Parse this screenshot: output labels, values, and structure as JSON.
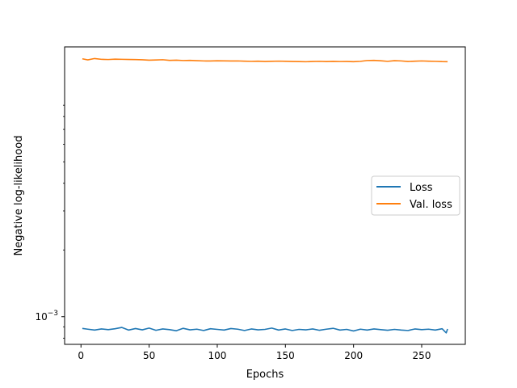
{
  "chart_data": {
    "type": "line",
    "title": "",
    "xlabel": "Epochs",
    "ylabel": "Negative log-likelihood",
    "xlim": [
      -12,
      282
    ],
    "ylim": [
      0.00075,
      0.0165
    ],
    "y_scale": "log",
    "x_ticks": [
      0,
      50,
      100,
      150,
      200,
      250
    ],
    "x_tick_labels": [
      "0",
      "50",
      "100",
      "150",
      "200",
      "250"
    ],
    "y_ticks": [
      0.001
    ],
    "y_tick_labels": [
      {
        "base": "10",
        "exp": "−3"
      }
    ],
    "grid": false,
    "legend_position": "center-right",
    "series": [
      {
        "name": "Loss",
        "color": "#1f77b4",
        "x": [
          1,
          5,
          10,
          15,
          20,
          25,
          30,
          35,
          40,
          45,
          50,
          55,
          60,
          65,
          70,
          75,
          80,
          85,
          90,
          95,
          100,
          105,
          110,
          115,
          120,
          125,
          130,
          135,
          140,
          145,
          150,
          155,
          160,
          165,
          170,
          175,
          180,
          185,
          190,
          195,
          200,
          205,
          210,
          215,
          220,
          225,
          230,
          235,
          240,
          245,
          250,
          255,
          260,
          265,
          268,
          269
        ],
        "values": [
          0.000885,
          0.000878,
          0.00087,
          0.00088,
          0.000874,
          0.000882,
          0.000894,
          0.00087,
          0.000884,
          0.000872,
          0.000888,
          0.000868,
          0.00088,
          0.000874,
          0.000864,
          0.000886,
          0.000872,
          0.000878,
          0.000866,
          0.000882,
          0.000876,
          0.00087,
          0.000884,
          0.000878,
          0.000866,
          0.00088,
          0.000872,
          0.000876,
          0.000888,
          0.00087,
          0.00088,
          0.000866,
          0.000876,
          0.000872,
          0.00088,
          0.000868,
          0.000878,
          0.000886,
          0.00087,
          0.000876,
          0.000862,
          0.000878,
          0.00087,
          0.00088,
          0.000874,
          0.000868,
          0.000876,
          0.00087,
          0.000866,
          0.00088,
          0.000874,
          0.000878,
          0.00087,
          0.000882,
          0.000845,
          0.00088
        ]
      },
      {
        "name": "Val. loss",
        "color": "#ff7f0e",
        "x": [
          1,
          5,
          10,
          15,
          20,
          25,
          30,
          35,
          40,
          45,
          50,
          55,
          60,
          65,
          70,
          75,
          80,
          85,
          90,
          95,
          100,
          105,
          110,
          115,
          120,
          125,
          130,
          135,
          140,
          145,
          150,
          155,
          160,
          165,
          170,
          175,
          180,
          185,
          190,
          195,
          200,
          205,
          210,
          215,
          220,
          225,
          230,
          235,
          240,
          245,
          250,
          255,
          260,
          265,
          269
        ],
        "values": [
          0.01458,
          0.01442,
          0.01462,
          0.0145,
          0.01447,
          0.01452,
          0.0145,
          0.01448,
          0.01446,
          0.01443,
          0.01437,
          0.0144,
          0.01444,
          0.01434,
          0.01437,
          0.01432,
          0.01434,
          0.0143,
          0.01426,
          0.01425,
          0.01428,
          0.01427,
          0.01425,
          0.01426,
          0.01422,
          0.0142,
          0.01422,
          0.01418,
          0.01421,
          0.01423,
          0.01421,
          0.01418,
          0.01416,
          0.01414,
          0.01418,
          0.0142,
          0.01416,
          0.01419,
          0.01417,
          0.01418,
          0.01415,
          0.0142,
          0.01432,
          0.01434,
          0.01428,
          0.0142,
          0.0143,
          0.01426,
          0.01418,
          0.01422,
          0.01426,
          0.01422,
          0.0142,
          0.01416,
          0.01415
        ]
      }
    ]
  }
}
